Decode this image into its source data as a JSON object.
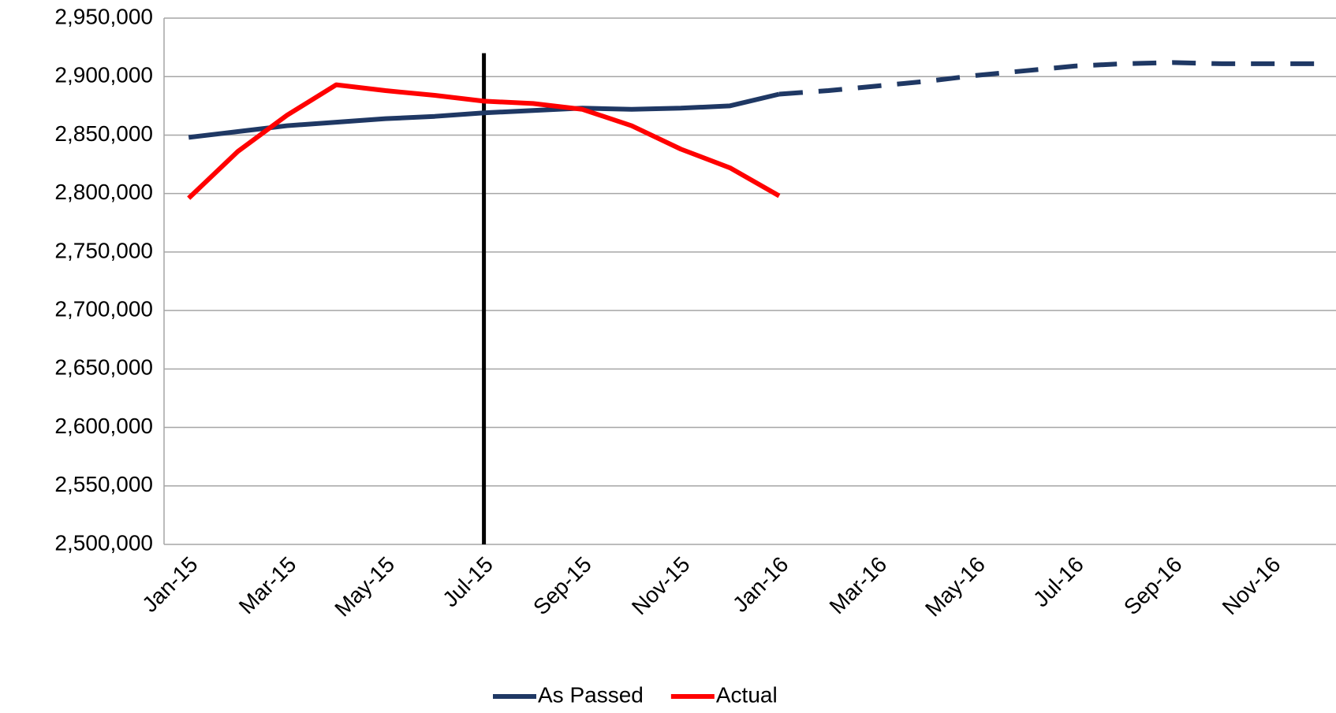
{
  "chart_data": {
    "type": "line",
    "categories": [
      "Jan-15",
      null,
      "Mar-15",
      null,
      "May-15",
      null,
      "Jul-15",
      null,
      "Sep-15",
      null,
      "Nov-15",
      null,
      "Jan-16",
      null,
      "Mar-16",
      null,
      "May-16",
      null,
      "Jul-16",
      null,
      "Sep-16",
      null,
      "Nov-16",
      null
    ],
    "series": [
      {
        "name": "As Passed",
        "color": "#1f3864",
        "dashed_from": 12,
        "values": [
          2848000,
          2853000,
          2858000,
          2861000,
          2864000,
          2866000,
          2869000,
          2871000,
          2873000,
          2872000,
          2873000,
          2875000,
          2885000,
          2888000,
          2892000,
          2896000,
          2901000,
          2905000,
          2909000,
          2911000,
          2912000,
          2911000,
          2911000,
          2911000
        ]
      },
      {
        "name": "Actual",
        "color": "#ff0000",
        "values": [
          2796000,
          2836000,
          2867000,
          2893000,
          2888000,
          2884000,
          2879000,
          2877000,
          2872000,
          2858000,
          2838000,
          2822000,
          2798000,
          null,
          null,
          null,
          null,
          null,
          null,
          null,
          null,
          null,
          null,
          null
        ]
      }
    ],
    "vline": {
      "at": "Jul-15",
      "from": 2500000,
      "to": 2920000,
      "color": "#000000"
    },
    "ylim": [
      2500000,
      2950000
    ],
    "yticks": [
      {
        "value": 2500000,
        "label": "2,500,000"
      },
      {
        "value": 2550000,
        "label": "2,550,000"
      },
      {
        "value": 2600000,
        "label": "2,600,000"
      },
      {
        "value": 2650000,
        "label": "2,650,000"
      },
      {
        "value": 2700000,
        "label": "2,700,000"
      },
      {
        "value": 2750000,
        "label": "2,750,000"
      },
      {
        "value": 2800000,
        "label": "2,800,000"
      },
      {
        "value": 2850000,
        "label": "2,850,000"
      },
      {
        "value": 2900000,
        "label": "2,900,000"
      },
      {
        "value": 2950000,
        "label": "2,950,000"
      }
    ],
    "grid": true,
    "legend": "bottom"
  }
}
